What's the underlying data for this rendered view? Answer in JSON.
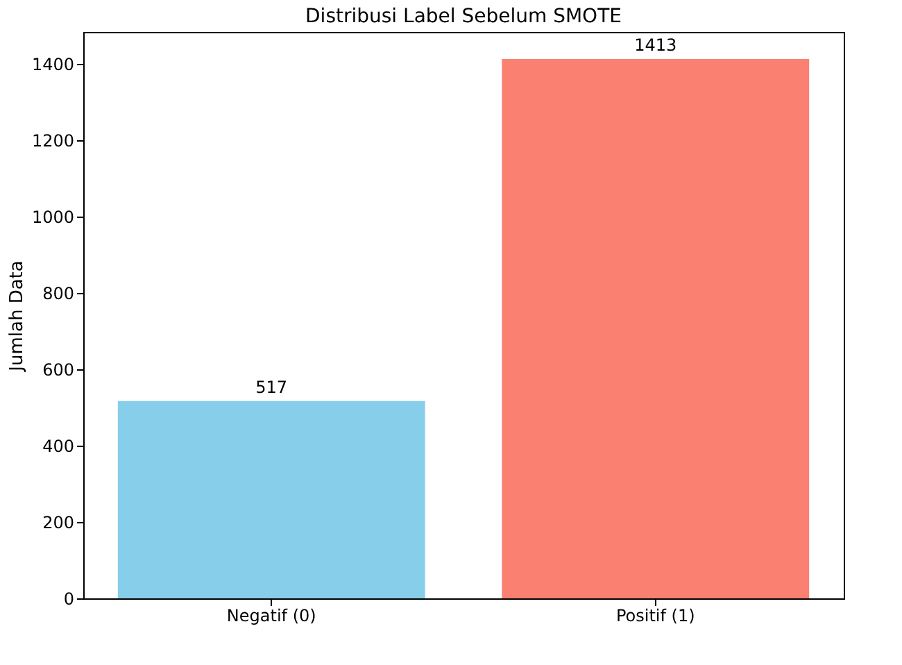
{
  "chart_data": {
    "type": "bar",
    "title": "Distribusi Label Sebelum SMOTE",
    "ylabel": "Jumlah Data",
    "categories": [
      "Negatif (0)",
      "Positif (1)"
    ],
    "values": [
      517,
      1413
    ],
    "colors": [
      "#87ceeb",
      "#fa8072"
    ],
    "ylim": [
      0,
      1484
    ],
    "yticks": [
      0,
      200,
      400,
      600,
      800,
      1000,
      1200,
      1400
    ],
    "data_labels": true,
    "grid": false
  }
}
